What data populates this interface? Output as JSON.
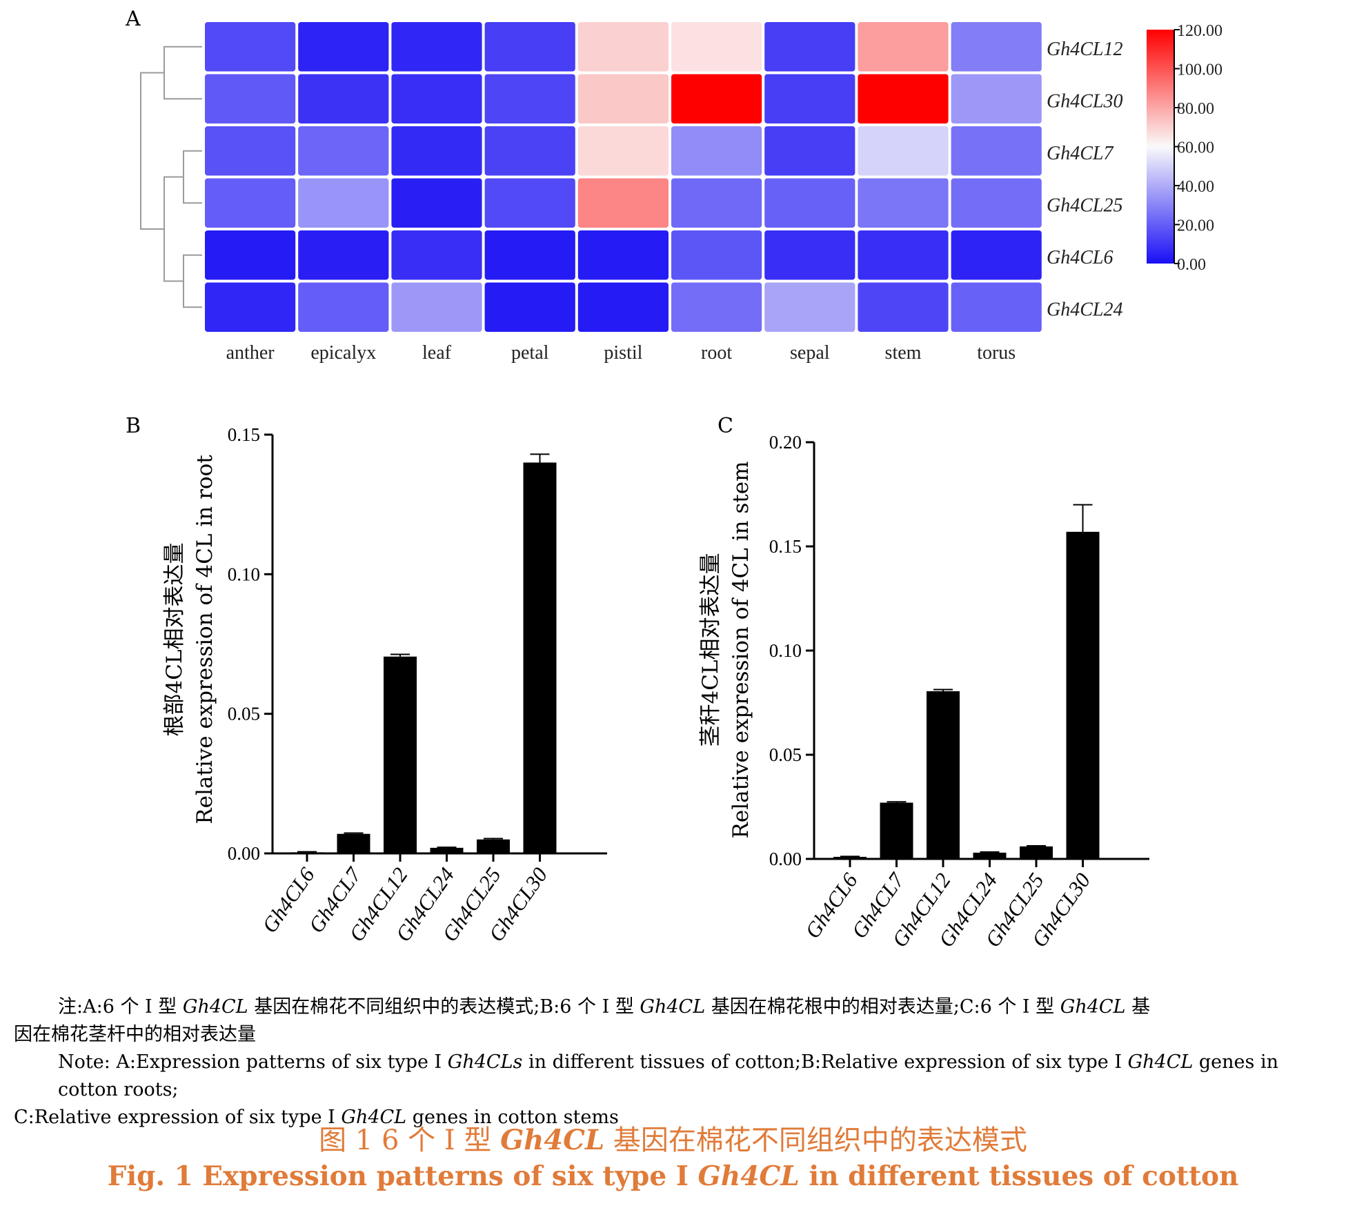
{
  "panels": {
    "a": {
      "letter": "A"
    },
    "b": {
      "letter": "B"
    },
    "c": {
      "letter": "C"
    }
  },
  "chart_data": [
    {
      "type": "heatmap",
      "columns": [
        "anther",
        "epicalyx",
        "leaf",
        "petal",
        "pistil",
        "root",
        "sepal",
        "stem",
        "torus"
      ],
      "rows": [
        "Gh4CL12",
        "Gh4CL30",
        "Gh4CL7",
        "Gh4CL25",
        "Gh4CL6",
        "Gh4CL24"
      ],
      "values": [
        [
          15,
          5,
          6,
          12,
          70,
          66,
          12,
          82,
          28
        ],
        [
          19,
          9,
          8,
          14,
          72,
          120,
          12,
          120,
          35
        ],
        [
          17,
          22,
          7,
          13,
          68,
          32,
          12,
          50,
          25
        ],
        [
          20,
          34,
          4,
          15,
          88,
          23,
          21,
          26,
          24
        ],
        [
          3,
          4,
          8,
          3,
          3,
          18,
          8,
          8,
          5
        ],
        [
          6,
          20,
          35,
          3,
          3,
          24,
          38,
          14,
          21
        ]
      ],
      "colorbar": {
        "ticks": [
          "0.00",
          "20.00",
          "40.00",
          "60.00",
          "80.00",
          "100.00",
          "120.00"
        ],
        "min": 0,
        "max": 120,
        "colors": [
          "#1a0ff5",
          "#fafafa",
          "#ff0000"
        ]
      },
      "dendrogram": "left"
    },
    {
      "type": "bar",
      "ylabel_cn": "根部4CL相对表达量",
      "ylabel_en": "Relative expression of 4CL in root",
      "categories": [
        "Gh4CL6",
        "Gh4CL7",
        "Gh4CL12",
        "Gh4CL24",
        "Gh4CL25",
        "Gh4CL30"
      ],
      "values": [
        0.0004,
        0.007,
        0.0705,
        0.002,
        0.005,
        0.14
      ],
      "errors": [
        0.0002,
        0.0003,
        0.0008,
        0.0002,
        0.0003,
        0.003
      ],
      "ylim": [
        0,
        0.15
      ],
      "yticks": [
        "0.00",
        "0.05",
        "0.10",
        "0.15"
      ]
    },
    {
      "type": "bar",
      "ylabel_cn": "茎秆4CL相对表达量",
      "ylabel_en": "Relative expression of 4CL in stem",
      "categories": [
        "Gh4CL6",
        "Gh4CL7",
        "Gh4CL12",
        "Gh4CL24",
        "Gh4CL25",
        "Gh4CL30"
      ],
      "values": [
        0.001,
        0.027,
        0.0805,
        0.003,
        0.006,
        0.157
      ],
      "errors": [
        0.0002,
        0.0004,
        0.0008,
        0.0003,
        0.0003,
        0.013
      ],
      "ylim": [
        0,
        0.2
      ],
      "yticks": [
        "0.00",
        "0.05",
        "0.10",
        "0.15",
        "0.20"
      ]
    }
  ],
  "notes": {
    "cn_prefix": "注:A:6 个 Ⅰ 型 ",
    "gene": "Gh4CL",
    "cn_mid1": " 基因在棉花不同组织中的表达模式;B:6 个 Ⅰ 型 ",
    "cn_mid2": " 基因在棉花根中的相对表达量;C:6 个 Ⅰ 型 ",
    "cn_end1": " 基",
    "cn_line2": "因在棉花茎杆中的相对表达量",
    "en_prefix": "Note: A:Expression patterns of six type Ⅰ ",
    "genes_plural": "Gh4CLs",
    "en_mid1": " in different tissues of cotton;B:Relative expression of six type Ⅰ ",
    "en_mid2": " genes in cotton roots;",
    "en_line2_prefix": "C:Relative expression of six type Ⅰ ",
    "en_line2_end": " genes in cotton stems"
  },
  "caption": {
    "cn_prefix": "图 1 6 个 Ⅰ 型 ",
    "cn_gene": "Gh4CL",
    "cn_suffix": " 基因在棉花不同组织中的表达模式",
    "en_prefix": "Fig. 1 Expression patterns of six type Ⅰ ",
    "en_gene": "Gh4CL",
    "en_suffix": " in different tissues of cotton"
  }
}
